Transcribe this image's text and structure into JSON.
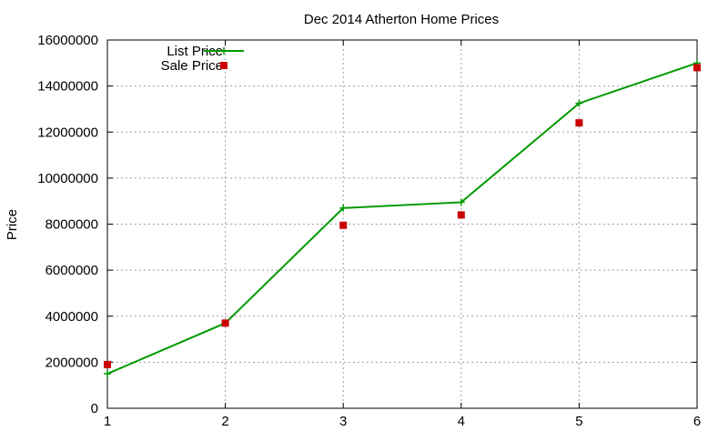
{
  "chart_data": {
    "type": "line",
    "title": "Dec 2014 Atherton Home Prices",
    "xlabel": "",
    "ylabel": "Price",
    "xlim": [
      1,
      6
    ],
    "ylim": [
      0,
      16000000
    ],
    "x_ticks": [
      1,
      2,
      3,
      4,
      5,
      6
    ],
    "y_ticks": [
      0,
      2000000,
      4000000,
      6000000,
      8000000,
      10000000,
      12000000,
      14000000,
      16000000
    ],
    "grid": true,
    "legend_position": "top-left",
    "series": [
      {
        "name": "List Price",
        "style": "line+cross-points",
        "color": "#009900",
        "x": [
          1,
          2,
          3,
          4,
          5,
          6
        ],
        "values": [
          1500000,
          3700000,
          8700000,
          8950000,
          13250000,
          15000000
        ]
      },
      {
        "name": "Sale Price",
        "style": "square-points",
        "color": "#cc0000",
        "x": [
          1,
          2,
          3,
          4,
          5,
          6
        ],
        "values": [
          1900000,
          3700000,
          7950000,
          8400000,
          12400000,
          14800000
        ]
      }
    ]
  }
}
